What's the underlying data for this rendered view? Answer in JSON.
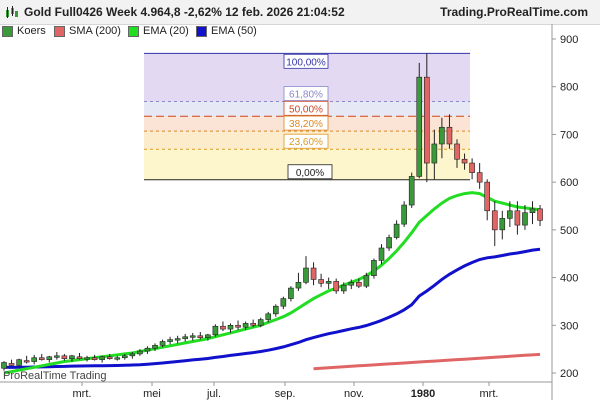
{
  "header": {
    "instrument": "Gold Full0426",
    "title_line": "Gold Full0426 Week 4.964,8 -2,62% 12 feb. 2026 21:04:52",
    "brand": "Trading.ProRealTime.com"
  },
  "legend": {
    "items": [
      {
        "label": "Koers",
        "color": "#3a9a3a"
      },
      {
        "label": "SMA (200)",
        "color": "#e06666"
      },
      {
        "label": "EMA (20)",
        "color": "#22dd22"
      },
      {
        "label": "EMA (50)",
        "color": "#1111cc"
      }
    ]
  },
  "watermark": "ProRealTime Trading",
  "fib": {
    "levels": [
      {
        "label": "100,00%",
        "value": 870,
        "color": "#3333aa"
      },
      {
        "label": "61,80%",
        "value": 769,
        "color": "#8888cc"
      },
      {
        "label": "50,00%",
        "value": 738,
        "color": "#cc4422"
      },
      {
        "label": "38,20%",
        "value": 707,
        "color": "#dd8822"
      },
      {
        "label": "23,60%",
        "value": 669,
        "color": "#dd9922"
      },
      {
        "label": "0,00%",
        "value": 605,
        "color": "#222222"
      }
    ]
  },
  "chart_data": {
    "type": "candlestick",
    "y_ticks": [
      900,
      800,
      700,
      600,
      500,
      400,
      300,
      200
    ],
    "ylim": [
      190,
      920
    ],
    "x_labels": [
      "mrt.",
      "mei",
      "jul.",
      "sep.",
      "nov.",
      "1980",
      "mrt."
    ],
    "candles": [
      [
        210,
        225,
        205,
        222
      ],
      [
        220,
        228,
        214,
        216
      ],
      [
        216,
        230,
        212,
        228
      ],
      [
        226,
        236,
        220,
        224
      ],
      [
        224,
        238,
        218,
        232
      ],
      [
        232,
        240,
        226,
        228
      ],
      [
        228,
        236,
        222,
        234
      ],
      [
        234,
        244,
        228,
        236
      ],
      [
        236,
        240,
        226,
        230
      ],
      [
        230,
        238,
        224,
        236
      ],
      [
        234,
        242,
        228,
        230
      ],
      [
        230,
        236,
        224,
        232
      ],
      [
        232,
        238,
        226,
        228
      ],
      [
        228,
        236,
        222,
        234
      ],
      [
        234,
        240,
        228,
        230
      ],
      [
        230,
        236,
        226,
        232
      ],
      [
        232,
        240,
        228,
        236
      ],
      [
        236,
        244,
        230,
        240
      ],
      [
        240,
        250,
        236,
        246
      ],
      [
        246,
        256,
        240,
        252
      ],
      [
        252,
        262,
        246,
        258
      ],
      [
        258,
        270,
        254,
        266
      ],
      [
        266,
        276,
        260,
        270
      ],
      [
        270,
        278,
        262,
        272
      ],
      [
        272,
        282,
        266,
        276
      ],
      [
        276,
        284,
        268,
        278
      ],
      [
        278,
        286,
        270,
        274
      ],
      [
        274,
        282,
        268,
        280
      ],
      [
        280,
        302,
        276,
        298
      ],
      [
        298,
        308,
        288,
        292
      ],
      [
        292,
        304,
        284,
        300
      ],
      [
        300,
        310,
        290,
        296
      ],
      [
        296,
        308,
        290,
        304
      ],
      [
        304,
        312,
        296,
        300
      ],
      [
        300,
        316,
        296,
        312
      ],
      [
        312,
        328,
        306,
        324
      ],
      [
        324,
        344,
        318,
        340
      ],
      [
        340,
        360,
        334,
        356
      ],
      [
        356,
        382,
        350,
        378
      ],
      [
        378,
        410,
        372,
        390
      ],
      [
        390,
        445,
        386,
        420
      ],
      [
        420,
        432,
        384,
        396
      ],
      [
        396,
        408,
        380,
        388
      ],
      [
        388,
        400,
        376,
        392
      ],
      [
        392,
        398,
        366,
        372
      ],
      [
        372,
        390,
        366,
        384
      ],
      [
        384,
        396,
        376,
        390
      ],
      [
        390,
        398,
        378,
        382
      ],
      [
        382,
        410,
        378,
        404
      ],
      [
        404,
        440,
        398,
        436
      ],
      [
        436,
        470,
        428,
        462
      ],
      [
        462,
        490,
        456,
        484
      ],
      [
        484,
        520,
        480,
        512
      ],
      [
        512,
        560,
        506,
        552
      ],
      [
        552,
        620,
        546,
        612
      ],
      [
        612,
        850,
        608,
        820
      ],
      [
        820,
        870,
        600,
        640
      ],
      [
        640,
        710,
        606,
        680
      ],
      [
        680,
        735,
        650,
        715
      ],
      [
        715,
        742,
        670,
        680
      ],
      [
        680,
        690,
        630,
        648
      ],
      [
        648,
        660,
        626,
        640
      ],
      [
        640,
        650,
        606,
        620
      ],
      [
        620,
        640,
        586,
        600
      ],
      [
        600,
        606,
        520,
        540
      ],
      [
        540,
        560,
        466,
        500
      ],
      [
        500,
        540,
        480,
        524
      ],
      [
        524,
        560,
        506,
        540
      ],
      [
        540,
        560,
        490,
        510
      ],
      [
        510,
        552,
        500,
        536
      ],
      [
        536,
        560,
        512,
        544
      ],
      [
        544,
        552,
        508,
        520
      ]
    ],
    "series": [
      {
        "name": "SMA (200)",
        "color": "#e06666"
      },
      {
        "name": "EMA (20)",
        "color": "#22dd22"
      },
      {
        "name": "EMA (50)",
        "color": "#1111cc"
      }
    ],
    "sma200": [
      null,
      null,
      null,
      null,
      null,
      null,
      null,
      null,
      null,
      null,
      null,
      null,
      null,
      null,
      null,
      null,
      null,
      null,
      null,
      null,
      null,
      null,
      null,
      null,
      null,
      null,
      null,
      null,
      null,
      null,
      null,
      null,
      null,
      null,
      null,
      null,
      null,
      null,
      null,
      null,
      null,
      null,
      null,
      null,
      null,
      null,
      null,
      null,
      null,
      null,
      null,
      null,
      null,
      null,
      null,
      null,
      null,
      null,
      null,
      null,
      null,
      null,
      null,
      null,
      null,
      null,
      null,
      null,
      null,
      null,
      null,
      null
    ],
    "ema20": [
      200,
      203,
      206,
      209,
      212,
      215,
      218,
      221,
      224,
      226,
      228,
      230,
      232,
      234,
      236,
      238,
      240,
      242,
      245,
      248,
      251,
      254,
      257,
      260,
      263,
      266,
      269,
      272,
      276,
      280,
      284,
      288,
      292,
      296,
      300,
      306,
      312,
      318,
      326,
      336,
      346,
      356,
      364,
      372,
      378,
      384,
      390,
      396,
      404,
      414,
      426,
      440,
      456,
      474,
      494,
      516,
      530,
      544,
      556,
      566,
      572,
      576,
      578,
      576,
      568,
      560,
      556,
      552,
      548,
      546,
      544,
      542
    ]
  }
}
